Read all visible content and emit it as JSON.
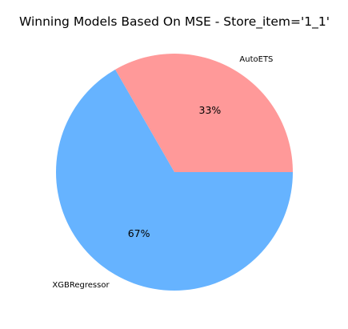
{
  "chart_data": {
    "type": "pie",
    "title": "Winning Models Based On MSE - Store_item='1_1'",
    "start_angle_deg": 0,
    "direction": "counterclockwise",
    "slices": [
      {
        "label": "AutoETS",
        "value": 33.33,
        "pct_label": "33%",
        "color": "#ff9999"
      },
      {
        "label": "XGBRegressor",
        "value": 66.67,
        "pct_label": "67%",
        "color": "#66b3ff"
      }
    ]
  }
}
